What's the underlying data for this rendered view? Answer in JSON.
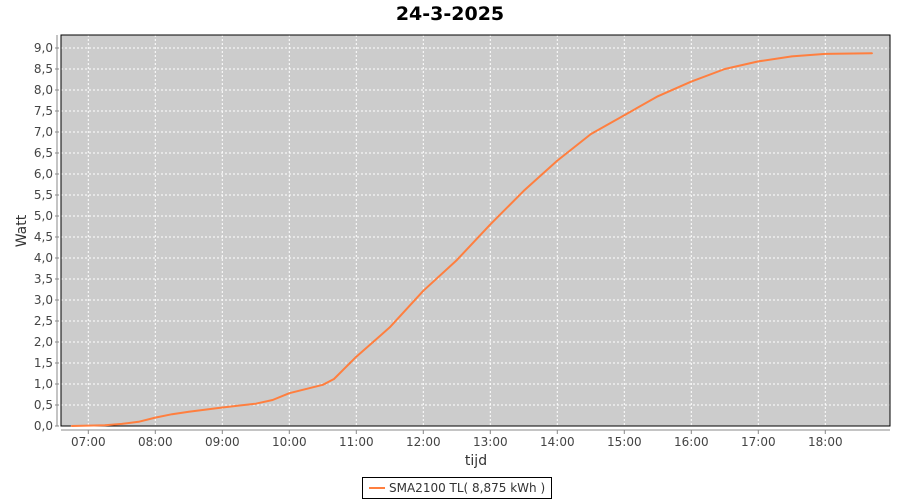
{
  "chart_data": {
    "type": "line",
    "title": "24-3-2025",
    "xlabel": "tijd",
    "ylabel": "Watt",
    "ylim": [
      0,
      9.0
    ],
    "yticks": [
      "0,0",
      "0,5",
      "1,0",
      "1,5",
      "2,0",
      "2,5",
      "3,0",
      "3,5",
      "4,0",
      "4,5",
      "5,0",
      "5,5",
      "6,0",
      "6,5",
      "7,0",
      "7,5",
      "8,0",
      "8,5",
      "9,0"
    ],
    "xticks": [
      "07:00",
      "08:00",
      "09:00",
      "10:00",
      "11:00",
      "12:00",
      "13:00",
      "14:00",
      "15:00",
      "16:00",
      "17:00",
      "18:00"
    ],
    "grid": true,
    "legend_position": "bottom",
    "series": [
      {
        "name": "SMA2100 TL( 8,875 kWh )",
        "color": "#ff7f3f",
        "x": [
          "06:45",
          "07:15",
          "07:30",
          "07:45",
          "08:00",
          "08:15",
          "08:30",
          "09:00",
          "09:30",
          "09:45",
          "10:00",
          "10:30",
          "10:40",
          "11:00",
          "11:30",
          "12:00",
          "12:30",
          "13:00",
          "13:30",
          "14:00",
          "14:30",
          "15:00",
          "15:30",
          "16:00",
          "16:30",
          "17:00",
          "17:30",
          "18:00",
          "18:42"
        ],
        "values": [
          0,
          0.02,
          0.05,
          0.1,
          0.2,
          0.28,
          0.34,
          0.44,
          0.53,
          0.62,
          0.78,
          0.98,
          1.12,
          1.65,
          2.35,
          3.22,
          3.95,
          4.8,
          5.6,
          6.32,
          6.95,
          7.4,
          7.85,
          8.2,
          8.5,
          8.68,
          8.8,
          8.86,
          8.875
        ]
      }
    ]
  }
}
